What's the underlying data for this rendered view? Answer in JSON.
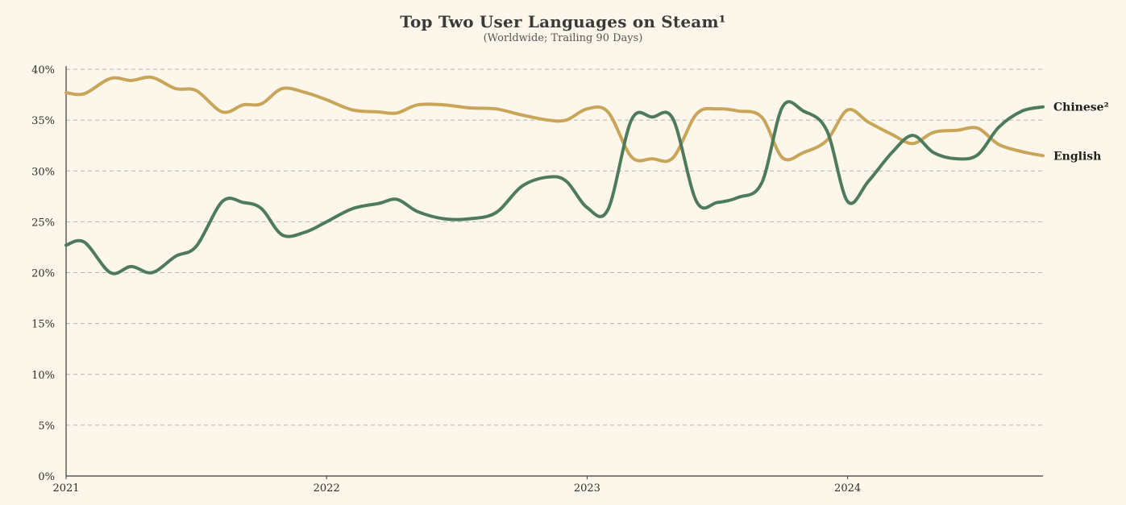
{
  "chart_data": {
    "type": "line",
    "title": "Top Two User Languages on Steam¹",
    "subtitle": "(Worldwide; Trailing 90 Days)",
    "xlabel": "",
    "ylabel": "",
    "xlim": [
      2021.0,
      2024.75
    ],
    "ylim": [
      0,
      40
    ],
    "y_ticks": [
      {
        "value": 0,
        "label": "0%"
      },
      {
        "value": 5,
        "label": "5%"
      },
      {
        "value": 10,
        "label": "10%"
      },
      {
        "value": 15,
        "label": "15%"
      },
      {
        "value": 20,
        "label": "20%"
      },
      {
        "value": 25,
        "label": "25%"
      },
      {
        "value": 30,
        "label": "30%"
      },
      {
        "value": 35,
        "label": "35%"
      },
      {
        "value": 40,
        "label": "40%"
      }
    ],
    "x_ticks": [
      {
        "value": 2021,
        "label": "2021"
      },
      {
        "value": 2022,
        "label": "2022"
      },
      {
        "value": 2023,
        "label": "2023"
      },
      {
        "value": 2024,
        "label": "2024"
      }
    ],
    "grid": "horizontal dashed",
    "legend": "inline labels at right end of lines",
    "series": [
      {
        "name": "English",
        "label": "English",
        "color": "#c9a55a",
        "x": [
          2021.0,
          2021.07,
          2021.17,
          2021.25,
          2021.33,
          2021.42,
          2021.5,
          2021.6,
          2021.68,
          2021.75,
          2021.83,
          2021.92,
          2022.0,
          2022.1,
          2022.2,
          2022.27,
          2022.35,
          2022.45,
          2022.55,
          2022.65,
          2022.75,
          2022.85,
          2022.92,
          2023.0,
          2023.08,
          2023.17,
          2023.25,
          2023.33,
          2023.42,
          2023.5,
          2023.58,
          2023.67,
          2023.75,
          2023.83,
          2023.92,
          2024.0,
          2024.08,
          2024.17,
          2024.25,
          2024.33,
          2024.42,
          2024.5,
          2024.58,
          2024.67,
          2024.75
        ],
        "y": [
          37.7,
          37.6,
          39.1,
          38.9,
          39.2,
          38.1,
          37.9,
          35.8,
          36.5,
          36.6,
          38.1,
          37.7,
          37.0,
          36.0,
          35.8,
          35.7,
          36.5,
          36.5,
          36.2,
          36.1,
          35.5,
          35.0,
          35.0,
          36.1,
          35.8,
          31.4,
          31.2,
          31.3,
          35.6,
          36.1,
          35.9,
          35.3,
          31.3,
          31.8,
          33.0,
          36.0,
          34.8,
          33.6,
          32.7,
          33.8,
          34.0,
          34.2,
          32.6,
          31.9,
          31.5
        ]
      },
      {
        "name": "Chinese²",
        "label": "Chinese²",
        "color": "#4e7a5e",
        "x": [
          2021.0,
          2021.07,
          2021.17,
          2021.25,
          2021.33,
          2021.42,
          2021.5,
          2021.6,
          2021.68,
          2021.75,
          2021.83,
          2021.92,
          2022.0,
          2022.1,
          2022.2,
          2022.27,
          2022.35,
          2022.45,
          2022.55,
          2022.65,
          2022.75,
          2022.85,
          2022.92,
          2023.0,
          2023.08,
          2023.17,
          2023.25,
          2023.33,
          2023.42,
          2023.5,
          2023.58,
          2023.67,
          2023.75,
          2023.83,
          2023.92,
          2024.0,
          2024.08,
          2024.17,
          2024.25,
          2024.33,
          2024.42,
          2024.5,
          2024.58,
          2024.67,
          2024.75
        ],
        "y": [
          22.7,
          23.0,
          20.0,
          20.6,
          20.0,
          21.6,
          22.6,
          27.0,
          26.9,
          26.3,
          23.7,
          24.0,
          25.0,
          26.3,
          26.8,
          27.2,
          26.0,
          25.3,
          25.3,
          25.9,
          28.5,
          29.4,
          29.0,
          26.4,
          26.2,
          35.0,
          35.3,
          35.1,
          27.0,
          26.9,
          27.4,
          28.8,
          36.3,
          35.9,
          34.0,
          27.0,
          29.0,
          31.8,
          33.5,
          31.8,
          31.2,
          31.6,
          34.3,
          35.9,
          36.3
        ]
      }
    ]
  }
}
